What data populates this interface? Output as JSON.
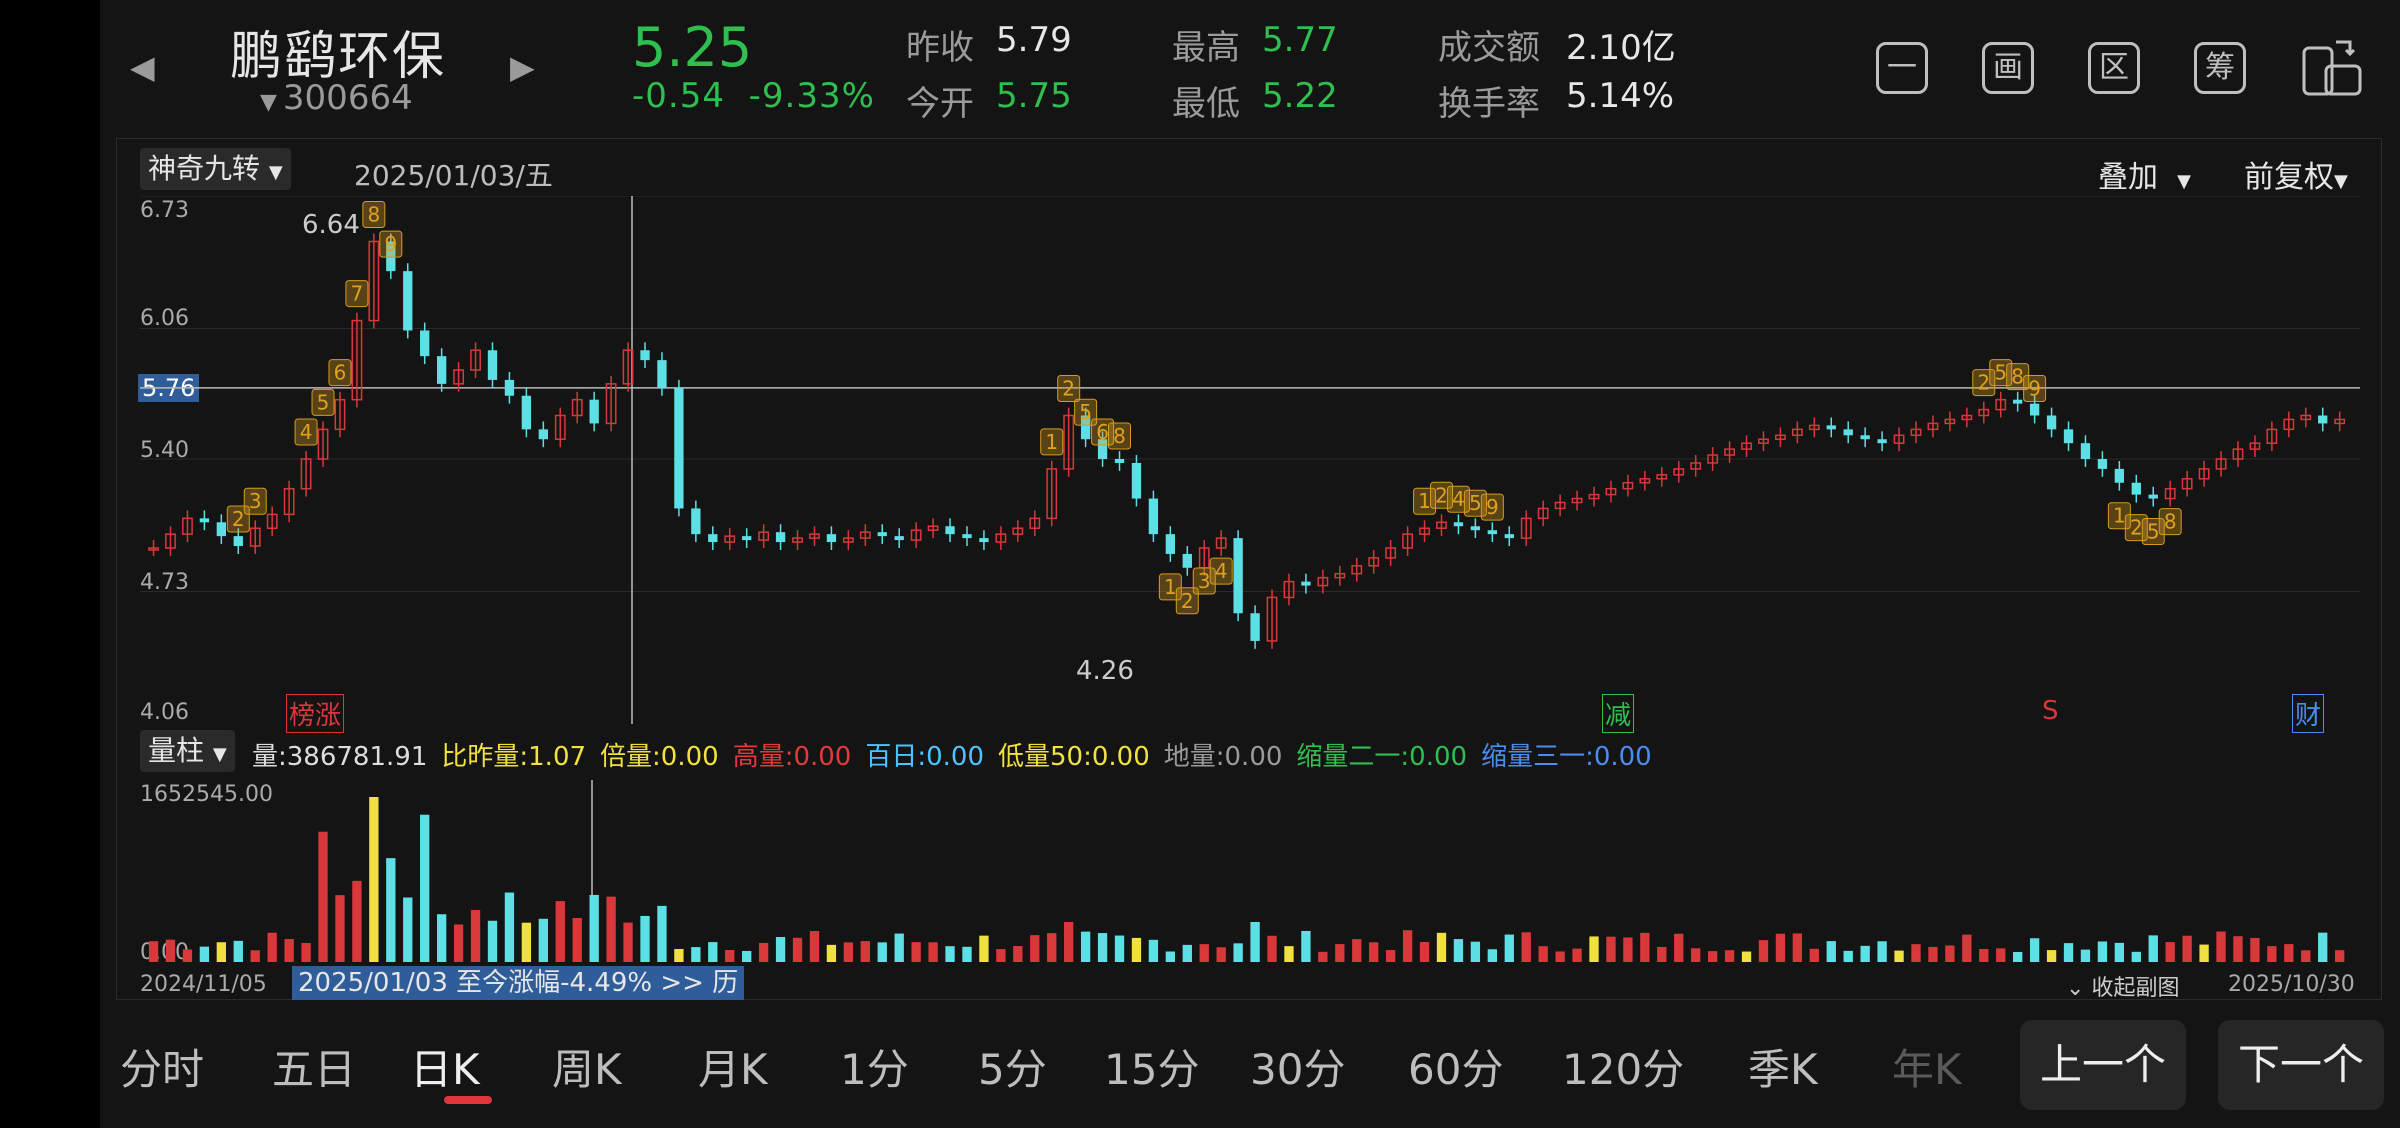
{
  "header": {
    "name": "鹏鹞环保",
    "code": "300664",
    "price": "5.25",
    "change": "-0.54",
    "change_pct": "-9.33%",
    "prev_close_label": "昨收",
    "prev_close": "5.79",
    "open_label": "今开",
    "open": "5.75",
    "high_label": "最高",
    "high": "5.77",
    "low_label": "最低",
    "low": "5.22",
    "turnover_label": "成交额",
    "turnover": "2.10亿",
    "turnover_rate_label": "换手率",
    "turnover_rate": "5.14%",
    "icons": [
      "minus-box-icon",
      "draw-icon",
      "range-icon",
      "chips-icon",
      "rotate-screen-icon"
    ],
    "icon_glyphs": [
      "一",
      "画",
      "区",
      "筹",
      ""
    ]
  },
  "chart_toolbar": {
    "indicator": "神奇九转",
    "date": "2025/01/03/五",
    "overlay": "叠加",
    "adjust": "前复权"
  },
  "price_axis": {
    "ticks": [
      "6.73",
      "6.06",
      "5.40",
      "4.73",
      "4.06"
    ],
    "crosshair_price": "5.76",
    "high_label": "6.64",
    "low_label": "4.26"
  },
  "event_tags": [
    {
      "text": "榜涨",
      "color": "#d9383a"
    },
    {
      "text": "减",
      "color": "#2fbf4f"
    },
    {
      "text": "S",
      "color": "#d9383a"
    },
    {
      "text": "财",
      "color": "#4a8cf0"
    }
  ],
  "volume_bar": {
    "selector": "量柱",
    "stats": [
      {
        "label": "量:386781.91",
        "color": "#dddddd"
      },
      {
        "label": "比昨量:1.07",
        "color": "#f0e040"
      },
      {
        "label": "倍量:0.00",
        "color": "#f0e040"
      },
      {
        "label": "高量:0.00",
        "color": "#e03a3a"
      },
      {
        "label": "百日:0.00",
        "color": "#4ac4ff"
      },
      {
        "label": "低量50:0.00",
        "color": "#f0e040"
      },
      {
        "label": "地量:0.00",
        "color": "#9a9a9a"
      },
      {
        "label": "缩量二一:0.00",
        "color": "#2fbf4f"
      },
      {
        "label": "缩量三一:0.00",
        "color": "#4a8cf0"
      }
    ],
    "max_label": "1652545.00",
    "zero_label": "0.00"
  },
  "range": {
    "start_date": "2024/11/05",
    "end_date": "2025/10/30",
    "stats_text": "2025/01/03 至今涨幅-4.49%  >> 历",
    "collapse": "收起副图"
  },
  "timeframes": [
    "分时",
    "五日",
    "日K",
    "周K",
    "月K",
    "1分",
    "5分",
    "15分",
    "30分",
    "60分",
    "120分",
    "季K",
    "年K"
  ],
  "active_timeframe": "日K",
  "nav": {
    "prev": "上一个",
    "next": "下一个"
  },
  "colors": {
    "up": "#d9383a",
    "down": "#5ce0e6",
    "accent_green": "#2fbf4f",
    "marker": "#d79a1e"
  },
  "chart_data": {
    "type": "candlestick",
    "ylim": [
      4.06,
      6.73
    ],
    "close_series": [
      4.95,
      5.02,
      5.1,
      5.08,
      5.01,
      4.96,
      5.05,
      5.12,
      5.25,
      5.4,
      5.55,
      5.7,
      6.1,
      6.5,
      6.35,
      6.05,
      5.92,
      5.78,
      5.85,
      5.95,
      5.8,
      5.72,
      5.55,
      5.5,
      5.62,
      5.7,
      5.58,
      5.78,
      5.95,
      5.9,
      5.76,
      5.15,
      5.02,
      4.98,
      5.01,
      4.99,
      5.03,
      4.98,
      5.0,
      5.02,
      4.98,
      5.0,
      5.03,
      5.01,
      4.99,
      5.04,
      5.06,
      5.02,
      5.0,
      4.98,
      5.02,
      5.05,
      5.1,
      5.35,
      5.62,
      5.5,
      5.4,
      5.38,
      5.2,
      5.02,
      4.92,
      4.85,
      4.95,
      5.0,
      4.62,
      4.48,
      4.7,
      4.78,
      4.76,
      4.8,
      4.82,
      4.86,
      4.9,
      4.95,
      5.02,
      5.05,
      5.08,
      5.06,
      5.04,
      5.02,
      5.0,
      5.1,
      5.15,
      5.18,
      5.2,
      5.22,
      5.25,
      5.28,
      5.3,
      5.32,
      5.35,
      5.38,
      5.42,
      5.45,
      5.48,
      5.5,
      5.52,
      5.55,
      5.57,
      5.55,
      5.52,
      5.5,
      5.48,
      5.52,
      5.55,
      5.58,
      5.6,
      5.62,
      5.65,
      5.7,
      5.68,
      5.62,
      5.55,
      5.48,
      5.4,
      5.35,
      5.28,
      5.22,
      5.2,
      5.25,
      5.3,
      5.35,
      5.4,
      5.45,
      5.48,
      5.55,
      5.6,
      5.62,
      5.58,
      5.6
    ],
    "volume_max": 1652545.0,
    "x_range": [
      "2024/11/05",
      "2025/10/30"
    ]
  }
}
